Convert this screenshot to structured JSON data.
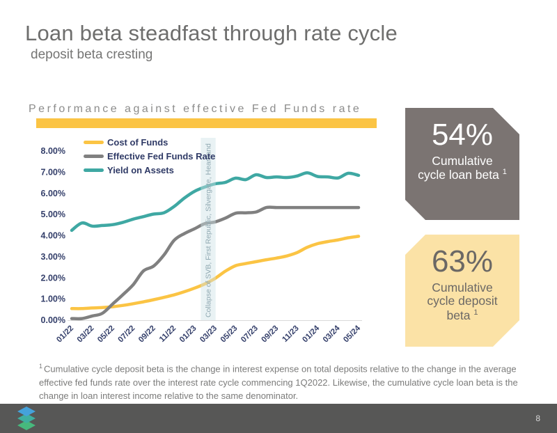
{
  "slide": {
    "title": "Loan beta steadfast through rate cycle",
    "subtitle": "deposit beta cresting",
    "page_number": "8"
  },
  "section": {
    "header": "Performance against effective Fed Funds rate",
    "accent_bar_color": "#FBC444"
  },
  "chart_data": {
    "type": "line",
    "title": "Performance against effective Fed Funds rate",
    "x": [
      "01/22",
      "02/22",
      "03/22",
      "04/22",
      "05/22",
      "06/22",
      "07/22",
      "08/22",
      "09/22",
      "10/22",
      "11/22",
      "12/22",
      "01/23",
      "02/23",
      "03/23",
      "04/23",
      "05/23",
      "06/23",
      "07/23",
      "08/23",
      "09/23",
      "10/23",
      "11/23",
      "12/23",
      "01/24",
      "02/24",
      "03/24",
      "04/24",
      "05/24"
    ],
    "x_tick_every": 2,
    "x_tick_labels": [
      "01/22",
      "03/22",
      "05/22",
      "07/22",
      "09/22",
      "11/22",
      "01/23",
      "03/23",
      "05/23",
      "07/23",
      "09/23",
      "11/23",
      "01/24",
      "03/24",
      "05/24"
    ],
    "ylim": [
      0,
      8
    ],
    "y_ticks": [
      "0.00%",
      "1.00%",
      "2.00%",
      "3.00%",
      "4.00%",
      "5.00%",
      "6.00%",
      "7.00%",
      "8.00%"
    ],
    "grid": false,
    "legend_position": "top-left",
    "series": [
      {
        "name": "Cost of Funds",
        "color": "#FBC444",
        "values": [
          0.55,
          0.55,
          0.58,
          0.6,
          0.64,
          0.7,
          0.78,
          0.87,
          0.97,
          1.08,
          1.2,
          1.35,
          1.52,
          1.72,
          1.98,
          2.32,
          2.58,
          2.68,
          2.77,
          2.86,
          2.94,
          3.04,
          3.2,
          3.45,
          3.62,
          3.72,
          3.8,
          3.9,
          3.97
        ]
      },
      {
        "name": "Effective Fed Funds Rate",
        "color": "#808080",
        "values": [
          0.08,
          0.08,
          0.2,
          0.33,
          0.77,
          1.21,
          1.68,
          2.33,
          2.56,
          3.08,
          3.78,
          4.1,
          4.33,
          4.57,
          4.65,
          4.83,
          5.06,
          5.08,
          5.12,
          5.33,
          5.33,
          5.33,
          5.33,
          5.33,
          5.33,
          5.33,
          5.33,
          5.33,
          5.33
        ]
      },
      {
        "name": "Yield on Assets",
        "color": "#3FA8A3",
        "values": [
          4.25,
          4.6,
          4.45,
          4.48,
          4.52,
          4.63,
          4.78,
          4.9,
          5.02,
          5.08,
          5.38,
          5.78,
          6.1,
          6.3,
          6.45,
          6.52,
          6.72,
          6.65,
          6.88,
          6.75,
          6.78,
          6.75,
          6.82,
          6.97,
          6.8,
          6.78,
          6.73,
          6.95,
          6.85
        ]
      }
    ],
    "annotation": {
      "label": "Collapse of SVB, First Republic, Silvergate, Heartland",
      "x_start_index": 12.6,
      "x_end_index": 14.05,
      "band_color": "#cfe3e6",
      "band_opacity": 0.45,
      "text_color": "#8fa8b1"
    },
    "axis_text_color": "#35406B",
    "axis_line_color": "#d9d9d9"
  },
  "callouts": [
    {
      "value": "54%",
      "label": "Cumulative cycle loan beta",
      "marker": "1"
    },
    {
      "value": "63%",
      "label": "Cumulative cycle deposit beta",
      "marker": "1"
    }
  ],
  "footnote": {
    "marker": "1",
    "text": "Cumulative cycle deposit beta is the change in interest expense on total deposits relative to the change in the average effective fed funds rate over the interest rate cycle commencing 1Q2022.  Likewise, the cumulative cycle loan beta is the change in loan interest income relative to the same denominator."
  },
  "logo": {
    "name": "stacked-layers-logo",
    "layer_colors": [
      "#45a2db",
      "#3fafa0",
      "#47b97d"
    ]
  }
}
